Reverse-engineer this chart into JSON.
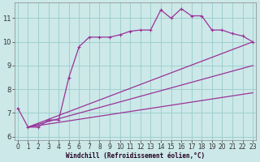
{
  "xlabel": "Windchill (Refroidissement éolien,°C)",
  "background_color": "#cce8e8",
  "grid_color": "#99cccc",
  "line_color": "#993399",
  "x_ticks": [
    0,
    1,
    2,
    3,
    4,
    5,
    6,
    7,
    8,
    9,
    10,
    11,
    12,
    13,
    14,
    15,
    16,
    17,
    18,
    19,
    20,
    21,
    22,
    23
  ],
  "y_ticks": [
    6,
    7,
    8,
    9,
    10,
    11
  ],
  "xlim": [
    -0.3,
    23.3
  ],
  "ylim": [
    5.85,
    11.65
  ],
  "main_line": {
    "x": [
      0,
      1,
      2,
      3,
      4,
      5,
      6,
      7,
      8,
      9,
      10,
      11,
      12,
      13,
      14,
      15,
      16,
      17,
      18,
      19,
      20,
      21,
      22,
      23
    ],
    "y": [
      7.2,
      6.4,
      6.4,
      6.7,
      6.7,
      8.5,
      9.8,
      10.2,
      10.2,
      10.2,
      10.3,
      10.45,
      10.5,
      10.5,
      11.35,
      11.0,
      11.4,
      11.1,
      11.1,
      10.5,
      10.5,
      10.35,
      10.25,
      10.0
    ]
  },
  "straight_lines": [
    {
      "x0": 1,
      "y0": 6.4,
      "x1": 23,
      "y1": 10.0
    },
    {
      "x0": 1,
      "y0": 6.4,
      "x1": 23,
      "y1": 9.0
    },
    {
      "x0": 1,
      "y0": 6.4,
      "x1": 23,
      "y1": 7.85
    }
  ],
  "tick_fontsize": 5.5,
  "xlabel_fontsize": 5.5,
  "linewidth": 0.9,
  "markersize": 2.5
}
